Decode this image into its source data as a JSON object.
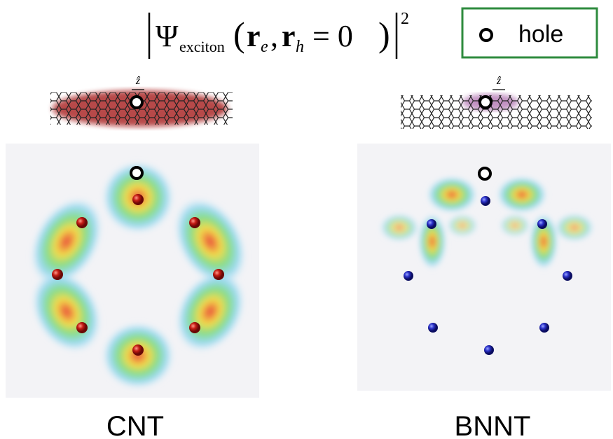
{
  "formula": {
    "psi": "Ψ",
    "sub": "exciton",
    "r_e": "r",
    "e": "e",
    "comma": ",",
    "r_h": "r",
    "h": "h",
    "eq": "= 0",
    "power": "2"
  },
  "legend": {
    "label": "hole"
  },
  "panels": [
    {
      "axis_label": "ẑ",
      "label": "CNT"
    },
    {
      "axis_label": "ẑ",
      "label": "BNNT"
    }
  ]
}
